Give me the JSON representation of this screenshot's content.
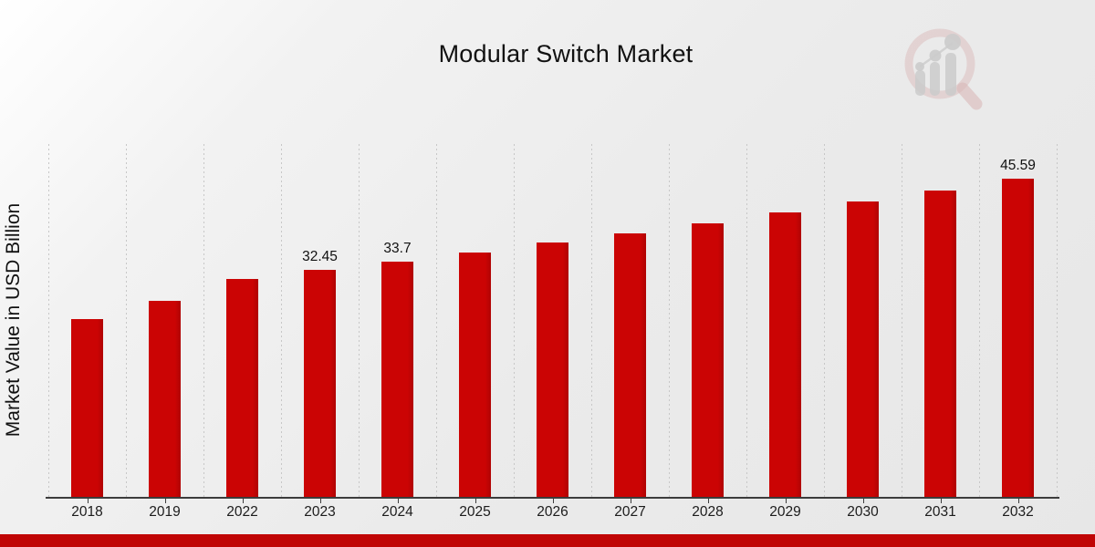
{
  "chart_data": {
    "type": "bar",
    "title": "Modular Switch Market",
    "xlabel": "",
    "ylabel": "Market Value in USD Billion",
    "categories": [
      "2018",
      "2019",
      "2022",
      "2023",
      "2024",
      "2025",
      "2026",
      "2027",
      "2028",
      "2029",
      "2030",
      "2031",
      "2032"
    ],
    "values": [
      25.5,
      28.0,
      31.25,
      32.45,
      33.7,
      35.0,
      36.35,
      37.76,
      39.2,
      40.71,
      42.27,
      43.9,
      45.59
    ],
    "data_labels": {
      "2023": "32.45",
      "2024": "33.7",
      "2032": "45.59"
    },
    "ylim": [
      0,
      50.5
    ],
    "grid": "vertical-dashed-only",
    "legend": "none",
    "bar_color": "#cb0404",
    "stripe_color": "#c00505",
    "axis_color": "#3c3c3c",
    "gridline_color": "#c7c7c7",
    "background": "light-gray-diagonal-gradient"
  },
  "watermark": {
    "name": "magnifier-trend-chart-logo",
    "ring_color": "#d09a9a",
    "bars_color": "#b2b2b2"
  }
}
